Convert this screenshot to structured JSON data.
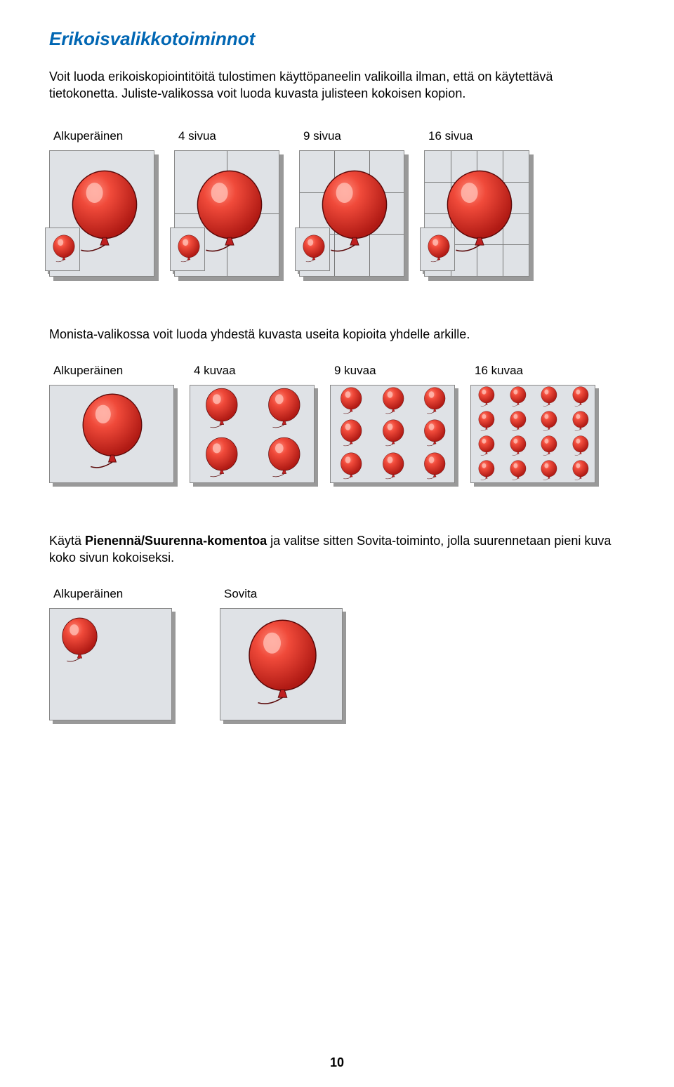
{
  "title": "Erikoisvalikkotoiminnot",
  "intro": "Voit luoda erikoiskopiointitöitä tulostimen käyttöpaneelin valikoilla ilman, että on käytettävä tietokonetta. Juliste-valikossa voit luoda kuvasta julisteen kokoisen kopion.",
  "poster": {
    "labels": [
      "Alkuperäinen",
      "4 sivua",
      "9 sivua",
      "16 sivua"
    ]
  },
  "multi_caption": "Monista-valikossa voit luoda yhdestä kuvasta useita kopioita yhdelle arkille.",
  "multi": {
    "labels": [
      "Alkuperäinen",
      "4 kuvaa",
      "9 kuvaa",
      "16 kuvaa"
    ]
  },
  "fit_caption_pre": "Käytä ",
  "fit_caption_bold": "Pienennä/Suurenna-komentoa",
  "fit_caption_post": " ja valitse sitten Sovita-toiminto, jolla suurennetaan pieni kuva koko sivun kokoiseksi.",
  "fit": {
    "labels": [
      "Alkuperäinen",
      "Sovita"
    ]
  },
  "page_number": "10",
  "colors": {
    "title": "#0066b3",
    "panel_bg": "#dfe2e6",
    "panel_border": "#888888",
    "shadow": "#999999",
    "balloon_fill": "#e03a3a",
    "balloon_dark": "#a01818",
    "balloon_hi": "#ffb0a8",
    "gridline": "#777777"
  }
}
